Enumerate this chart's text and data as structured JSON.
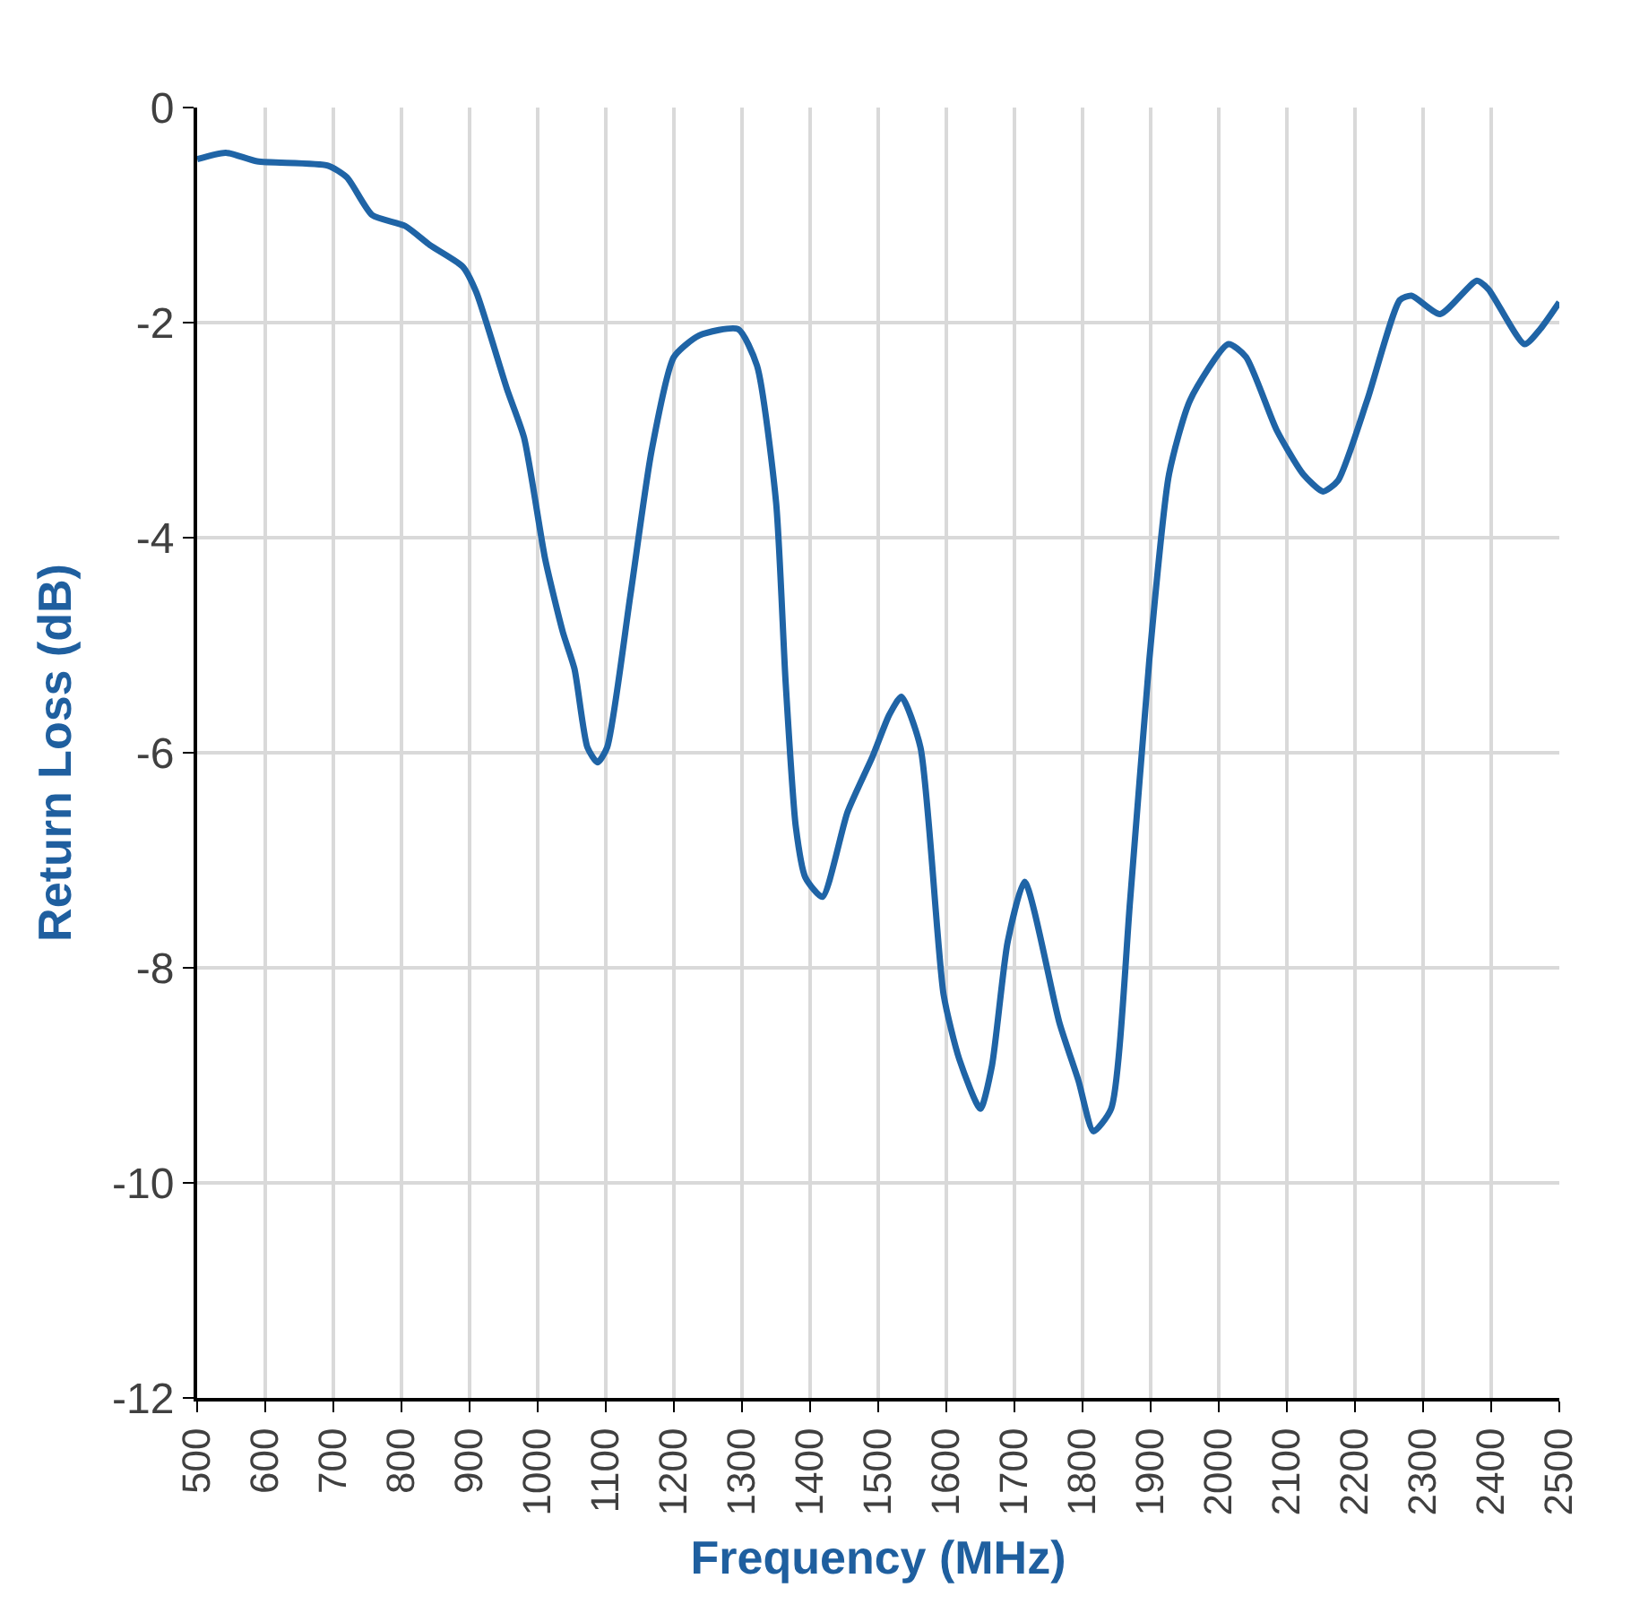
{
  "chart_data": {
    "type": "line",
    "xlabel": "Frequency (MHz)",
    "ylabel": "Return Loss (dB)",
    "xlim": [
      500,
      2500
    ],
    "xticks": [
      500,
      600,
      700,
      800,
      900,
      1000,
      1100,
      1200,
      1300,
      1400,
      1500,
      1600,
      1700,
      1800,
      1900,
      2000,
      2100,
      2200,
      2300,
      2400,
      2500
    ],
    "ylim": [
      -12,
      0
    ],
    "yticks": [
      -12,
      -10,
      -8,
      -6,
      -4,
      -2,
      0
    ],
    "grid": true,
    "marker": "none",
    "line_style": "solid",
    "series": [
      {
        "color": "#1f64a6",
        "x": [
          500,
          542,
          588,
          692,
          720,
          757,
          805,
          842,
          890,
          910,
          955,
          980,
          1011,
          1037,
          1054,
          1073,
          1088,
          1102,
          1136,
          1167,
          1200,
          1237,
          1294,
          1322,
          1350,
          1364,
          1379,
          1393,
          1418,
          1455,
          1492,
          1516,
          1534,
          1562,
          1596,
          1619,
          1650,
          1667,
          1690,
          1715,
          1766,
          1794,
          1816,
          1842,
          1870,
          1898,
          1927,
          1958,
          2014,
          2040,
          2085,
          2124,
          2153,
          2175,
          2218,
          2266,
          2283,
          2325,
          2379,
          2396,
          2449,
          2472,
          2500
        ],
        "values": [
          -0.48,
          -0.42,
          -0.5,
          -0.54,
          -0.65,
          -1.0,
          -1.1,
          -1.28,
          -1.48,
          -1.72,
          -2.62,
          -3.07,
          -4.2,
          -4.88,
          -5.22,
          -5.95,
          -6.09,
          -5.95,
          -4.54,
          -3.2,
          -2.32,
          -2.12,
          -2.06,
          -2.4,
          -3.67,
          -5.34,
          -6.69,
          -7.16,
          -7.34,
          -6.55,
          -6.03,
          -5.65,
          -5.48,
          -5.95,
          -8.25,
          -8.85,
          -9.31,
          -8.91,
          -7.76,
          -7.2,
          -8.51,
          -9.05,
          -9.52,
          -9.31,
          -7.36,
          -5.14,
          -3.41,
          -2.72,
          -2.2,
          -2.32,
          -3.0,
          -3.41,
          -3.57,
          -3.47,
          -2.72,
          -1.79,
          -1.75,
          -1.92,
          -1.61,
          -1.69,
          -2.2,
          -2.06,
          -1.81
        ]
      }
    ]
  }
}
